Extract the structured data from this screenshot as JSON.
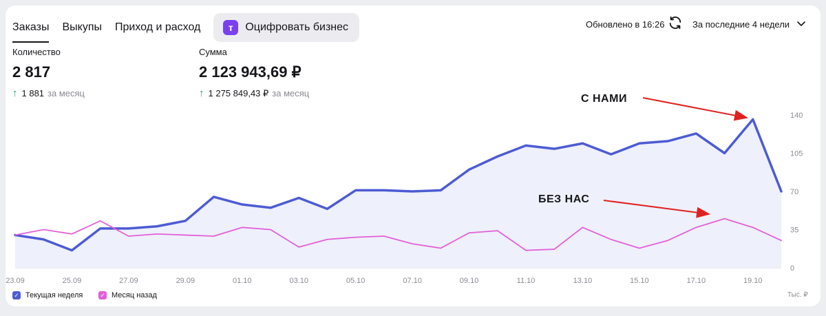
{
  "tabs": [
    {
      "label": "Заказы",
      "active": true
    },
    {
      "label": "Выкупы",
      "active": false
    },
    {
      "label": "Приход и расход",
      "active": false
    }
  ],
  "promo": {
    "logo": "т",
    "label": "Оцифровать бизнес",
    "logo_color": "#7b3ff2"
  },
  "header": {
    "updated": "Обновлено в 16:26",
    "period": "За последние 4 недели",
    "refresh_icon": "refresh-icon",
    "dropdown_icon": "chevron-down-icon"
  },
  "metrics": {
    "count": {
      "label": "Количество",
      "value": "2 817",
      "delta": "1 881",
      "delta_suffix": "за месяц"
    },
    "sum": {
      "label": "Сумма",
      "value": "2 123 943,69 ₽",
      "delta": "1 275 849,43 ₽",
      "delta_suffix": "за месяц"
    }
  },
  "annotations": {
    "with_us": "С НАМИ",
    "without_us": "БЕЗ НАС",
    "arrow_color": "#e02020"
  },
  "chart_data": {
    "type": "area",
    "x": [
      "23.09",
      "24.09",
      "25.09",
      "26.09",
      "27.09",
      "28.09",
      "29.09",
      "30.09",
      "01.10",
      "02.10",
      "03.10",
      "04.10",
      "05.10",
      "06.10",
      "07.10",
      "08.10",
      "09.10",
      "10.10",
      "11.10",
      "12.10",
      "13.10",
      "14.10",
      "15.10",
      "16.10",
      "17.10",
      "18.10",
      "19.10",
      "20.10"
    ],
    "x_tick_labels": [
      "23.09",
      "25.09",
      "27.09",
      "29.09",
      "01.10",
      "03.10",
      "05.10",
      "07.10",
      "09.10",
      "11.10",
      "13.10",
      "15.10",
      "17.10",
      "19.10"
    ],
    "y_ticks": [
      "0",
      "35",
      "70",
      "105",
      "140"
    ],
    "ylim": [
      0,
      140
    ],
    "y_unit": "Тыс. ₽",
    "series": [
      {
        "name": "Текущая неделя",
        "color": "#4c5bd4",
        "values": [
          30,
          26,
          16,
          36,
          36,
          38,
          43,
          65,
          58,
          55,
          64,
          54,
          71,
          71,
          70,
          71,
          90,
          102,
          112,
          109,
          114,
          104,
          114,
          116,
          123,
          105,
          136,
          70
        ]
      },
      {
        "name": "Месяц назад",
        "color": "#e35fd8",
        "values": [
          30,
          35,
          31,
          43,
          29,
          31,
          30,
          29,
          37,
          35,
          19,
          26,
          28,
          29,
          22,
          18,
          32,
          34,
          16,
          17,
          37,
          26,
          18,
          25,
          37,
          45,
          37,
          25
        ]
      }
    ],
    "legend": "bottom-left",
    "grid": false
  }
}
